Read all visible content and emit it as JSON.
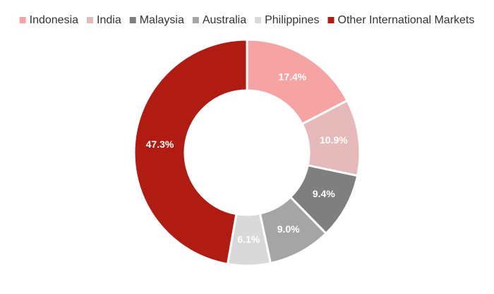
{
  "chart_data": {
    "type": "donut",
    "categories": [
      "Indonesia",
      "India",
      "Malaysia",
      "Australia",
      "Philippines",
      "Other International Markets"
    ],
    "values": [
      17.4,
      10.9,
      9.4,
      9.0,
      6.1,
      47.3
    ],
    "value_labels": [
      "17.4%",
      "10.9%",
      "9.4%",
      "9.0%",
      "6.1%",
      "47.3%"
    ],
    "colors": [
      "#f5a3a3",
      "#e6baba",
      "#7f7f7f",
      "#a5a5a5",
      "#d9d9d9",
      "#b01b12"
    ],
    "legend": "top"
  }
}
